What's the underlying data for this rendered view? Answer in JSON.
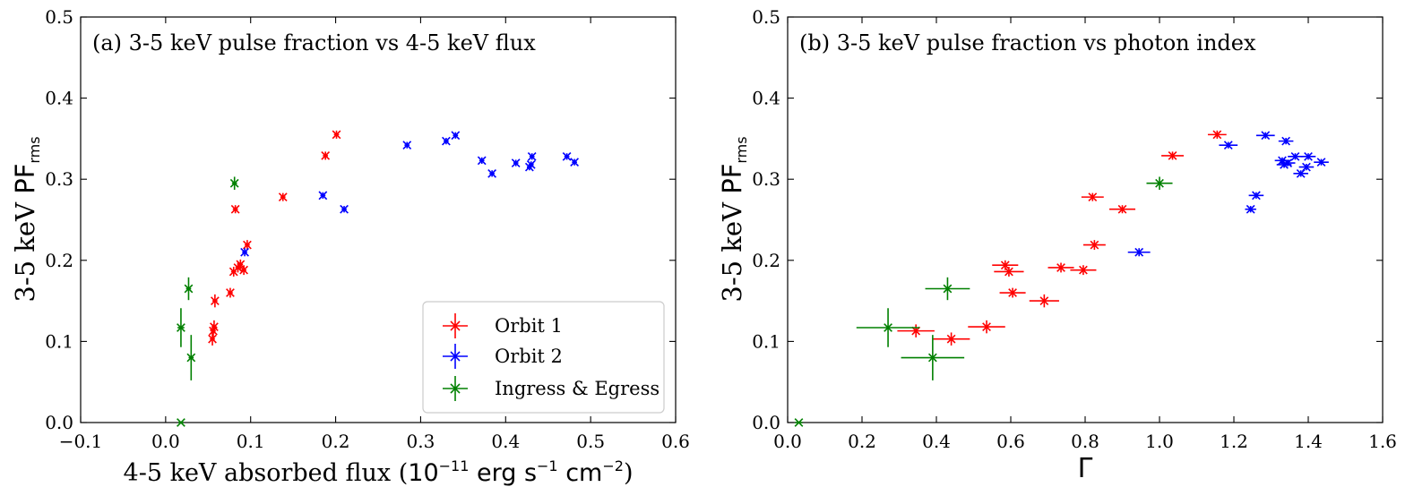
{
  "chart_data": [
    {
      "type": "scatter",
      "title": "(a) 3-5 keV pulse fraction vs 4-5 keV flux",
      "ylabel": {
        "prefix": "3-5 keV ",
        "main": "PF",
        "sub": "rms"
      },
      "xlabel": {
        "prefix": "4-5 keV absorbed flux (",
        "unit_base": "10",
        "unit_exp": "−11",
        "unit_mid1": " erg s",
        "unit_exp2": "−1",
        "unit_mid2": " cm",
        "unit_exp3": "−2",
        "suffix": ")"
      },
      "xlim": [
        -0.1,
        0.6
      ],
      "ylim": [
        0.0,
        0.5
      ],
      "xticks": [
        -0.1,
        0.0,
        0.1,
        0.2,
        0.3,
        0.4,
        0.5,
        0.6
      ],
      "xtick_labels": [
        "−0.1",
        "0.0",
        "0.1",
        "0.2",
        "0.3",
        "0.4",
        "0.5",
        "0.6"
      ],
      "yticks": [
        0.0,
        0.1,
        0.2,
        0.3,
        0.4,
        0.5
      ],
      "ytick_labels": [
        "0.0",
        "0.1",
        "0.2",
        "0.3",
        "0.4",
        "0.5"
      ],
      "legend_position": "bottom-right",
      "series": [
        {
          "name": "Orbit 1",
          "color": "#ff0000",
          "points": [
            {
              "x": 0.201,
              "y": 0.355,
              "xerr": 0.003,
              "yerr": 0.005
            },
            {
              "x": 0.188,
              "y": 0.329,
              "xerr": 0.003,
              "yerr": 0.005
            },
            {
              "x": 0.138,
              "y": 0.278,
              "xerr": 0.003,
              "yerr": 0.005
            },
            {
              "x": 0.082,
              "y": 0.263,
              "xerr": 0.003,
              "yerr": 0.005
            },
            {
              "x": 0.096,
              "y": 0.219,
              "xerr": 0.003,
              "yerr": 0.006
            },
            {
              "x": 0.088,
              "y": 0.195,
              "xerr": 0.003,
              "yerr": 0.006
            },
            {
              "x": 0.085,
              "y": 0.191,
              "xerr": 0.003,
              "yerr": 0.006
            },
            {
              "x": 0.092,
              "y": 0.188,
              "xerr": 0.003,
              "yerr": 0.006
            },
            {
              "x": 0.08,
              "y": 0.186,
              "xerr": 0.003,
              "yerr": 0.006
            },
            {
              "x": 0.076,
              "y": 0.16,
              "xerr": 0.003,
              "yerr": 0.006
            },
            {
              "x": 0.058,
              "y": 0.15,
              "xerr": 0.003,
              "yerr": 0.008
            },
            {
              "x": 0.057,
              "y": 0.118,
              "xerr": 0.003,
              "yerr": 0.008
            },
            {
              "x": 0.056,
              "y": 0.113,
              "xerr": 0.003,
              "yerr": 0.008
            },
            {
              "x": 0.055,
              "y": 0.103,
              "xerr": 0.003,
              "yerr": 0.008
            }
          ]
        },
        {
          "name": "Orbit 2",
          "color": "#0000ff",
          "points": [
            {
              "x": 0.341,
              "y": 0.354,
              "xerr": 0.003,
              "yerr": 0.004
            },
            {
              "x": 0.33,
              "y": 0.347,
              "xerr": 0.003,
              "yerr": 0.004
            },
            {
              "x": 0.284,
              "y": 0.342,
              "xerr": 0.003,
              "yerr": 0.004
            },
            {
              "x": 0.472,
              "y": 0.328,
              "xerr": 0.003,
              "yerr": 0.004
            },
            {
              "x": 0.431,
              "y": 0.328,
              "xerr": 0.003,
              "yerr": 0.004
            },
            {
              "x": 0.372,
              "y": 0.323,
              "xerr": 0.003,
              "yerr": 0.004
            },
            {
              "x": 0.481,
              "y": 0.321,
              "xerr": 0.003,
              "yerr": 0.004
            },
            {
              "x": 0.412,
              "y": 0.32,
              "xerr": 0.003,
              "yerr": 0.004
            },
            {
              "x": 0.43,
              "y": 0.318,
              "xerr": 0.003,
              "yerr": 0.004
            },
            {
              "x": 0.428,
              "y": 0.315,
              "xerr": 0.003,
              "yerr": 0.004
            },
            {
              "x": 0.384,
              "y": 0.307,
              "xerr": 0.003,
              "yerr": 0.004
            },
            {
              "x": 0.185,
              "y": 0.28,
              "xerr": 0.003,
              "yerr": 0.004
            },
            {
              "x": 0.21,
              "y": 0.263,
              "xerr": 0.003,
              "yerr": 0.004
            },
            {
              "x": 0.093,
              "y": 0.21,
              "xerr": 0.003,
              "yerr": 0.005
            }
          ]
        },
        {
          "name": "Ingress & Egress",
          "color": "#008000",
          "points": [
            {
              "x": 0.081,
              "y": 0.295,
              "xerr": 0.003,
              "yerr": 0.008
            },
            {
              "x": 0.027,
              "y": 0.165,
              "xerr": 0.003,
              "yerr": 0.014
            },
            {
              "x": 0.018,
              "y": 0.117,
              "xerr": 0.004,
              "yerr": 0.024
            },
            {
              "x": 0.03,
              "y": 0.08,
              "xerr": 0.003,
              "yerr": 0.028
            },
            {
              "x": 0.018,
              "y": 0.0,
              "xerr": 0.003,
              "yerr": 0.0
            }
          ]
        }
      ]
    },
    {
      "type": "scatter",
      "title": "(b) 3-5 keV pulse fraction vs photon index",
      "ylabel": {
        "prefix": "3-5 keV ",
        "main": "PF",
        "sub": "rms"
      },
      "xlabel": {
        "symbol": "Γ"
      },
      "xlim": [
        0.0,
        1.6
      ],
      "ylim": [
        0.0,
        0.5
      ],
      "xticks": [
        0.0,
        0.2,
        0.4,
        0.6,
        0.8,
        1.0,
        1.2,
        1.4,
        1.6
      ],
      "xtick_labels": [
        "0.0",
        "0.2",
        "0.4",
        "0.6",
        "0.8",
        "1.0",
        "1.2",
        "1.4",
        "1.6"
      ],
      "yticks": [
        0.0,
        0.1,
        0.2,
        0.3,
        0.4,
        0.5
      ],
      "ytick_labels": [
        "0.0",
        "0.1",
        "0.2",
        "0.3",
        "0.4",
        "0.5"
      ],
      "series": [
        {
          "name": "Orbit 1",
          "color": "#ff0000",
          "points": [
            {
              "x": 1.155,
              "y": 0.355,
              "xerr": 0.025,
              "yerr": 0.005
            },
            {
              "x": 1.035,
              "y": 0.329,
              "xerr": 0.03,
              "yerr": 0.005
            },
            {
              "x": 0.82,
              "y": 0.278,
              "xerr": 0.03,
              "yerr": 0.005
            },
            {
              "x": 0.9,
              "y": 0.263,
              "xerr": 0.035,
              "yerr": 0.005
            },
            {
              "x": 0.825,
              "y": 0.219,
              "xerr": 0.03,
              "yerr": 0.006
            },
            {
              "x": 0.585,
              "y": 0.194,
              "xerr": 0.035,
              "yerr": 0.006
            },
            {
              "x": 0.735,
              "y": 0.191,
              "xerr": 0.035,
              "yerr": 0.006
            },
            {
              "x": 0.795,
              "y": 0.188,
              "xerr": 0.035,
              "yerr": 0.006
            },
            {
              "x": 0.595,
              "y": 0.186,
              "xerr": 0.04,
              "yerr": 0.006
            },
            {
              "x": 0.605,
              "y": 0.16,
              "xerr": 0.035,
              "yerr": 0.006
            },
            {
              "x": 0.69,
              "y": 0.15,
              "xerr": 0.04,
              "yerr": 0.008
            },
            {
              "x": 0.535,
              "y": 0.118,
              "xerr": 0.05,
              "yerr": 0.008
            },
            {
              "x": 0.345,
              "y": 0.113,
              "xerr": 0.05,
              "yerr": 0.008
            },
            {
              "x": 0.44,
              "y": 0.103,
              "xerr": 0.05,
              "yerr": 0.008
            }
          ]
        },
        {
          "name": "Orbit 2",
          "color": "#0000ff",
          "points": [
            {
              "x": 1.285,
              "y": 0.354,
              "xerr": 0.025,
              "yerr": 0.004
            },
            {
              "x": 1.34,
              "y": 0.347,
              "xerr": 0.02,
              "yerr": 0.004
            },
            {
              "x": 1.185,
              "y": 0.342,
              "xerr": 0.025,
              "yerr": 0.004
            },
            {
              "x": 1.4,
              "y": 0.328,
              "xerr": 0.02,
              "yerr": 0.004
            },
            {
              "x": 1.365,
              "y": 0.328,
              "xerr": 0.02,
              "yerr": 0.004
            },
            {
              "x": 1.33,
              "y": 0.323,
              "xerr": 0.02,
              "yerr": 0.004
            },
            {
              "x": 1.435,
              "y": 0.321,
              "xerr": 0.02,
              "yerr": 0.004
            },
            {
              "x": 1.345,
              "y": 0.32,
              "xerr": 0.02,
              "yerr": 0.004
            },
            {
              "x": 1.335,
              "y": 0.318,
              "xerr": 0.02,
              "yerr": 0.004
            },
            {
              "x": 1.395,
              "y": 0.315,
              "xerr": 0.02,
              "yerr": 0.004
            },
            {
              "x": 1.38,
              "y": 0.307,
              "xerr": 0.02,
              "yerr": 0.004
            },
            {
              "x": 1.26,
              "y": 0.28,
              "xerr": 0.02,
              "yerr": 0.004
            },
            {
              "x": 1.245,
              "y": 0.263,
              "xerr": 0.015,
              "yerr": 0.004
            },
            {
              "x": 0.945,
              "y": 0.21,
              "xerr": 0.03,
              "yerr": 0.005
            }
          ]
        },
        {
          "name": "Ingress & Egress",
          "color": "#008000",
          "points": [
            {
              "x": 1.0,
              "y": 0.295,
              "xerr": 0.035,
              "yerr": 0.008
            },
            {
              "x": 0.43,
              "y": 0.165,
              "xerr": 0.06,
              "yerr": 0.014
            },
            {
              "x": 0.27,
              "y": 0.117,
              "xerr": 0.085,
              "yerr": 0.024
            },
            {
              "x": 0.39,
              "y": 0.08,
              "xerr": 0.085,
              "yerr": 0.028
            },
            {
              "x": 0.03,
              "y": 0.0,
              "xerr": 0.01,
              "yerr": 0.0
            }
          ]
        }
      ]
    }
  ]
}
